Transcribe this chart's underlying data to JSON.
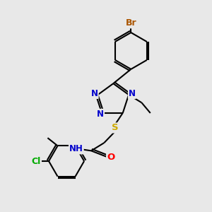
{
  "background_color": "#e8e8e8",
  "bond_color": "#000000",
  "bond_width": 1.5,
  "atom_colors": {
    "N": "#0000cc",
    "O": "#ff0000",
    "S": "#ccaa00",
    "Br": "#aa5500",
    "Cl": "#00aa00",
    "C": "#000000",
    "H": "#000000"
  },
  "font_size": 8.5,
  "figsize": [
    3.0,
    3.0
  ],
  "dpi": 100
}
